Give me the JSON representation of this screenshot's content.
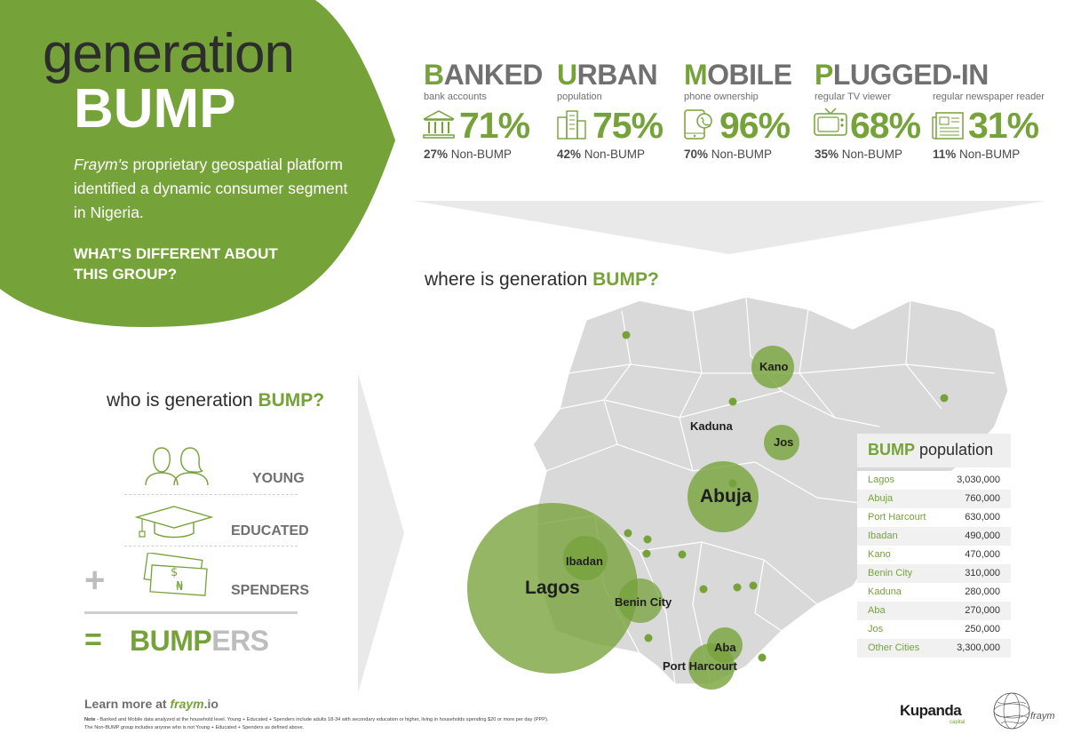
{
  "hero": {
    "title_line1": "generation",
    "title_line2": "BUMP",
    "brand": "Fraym's",
    "description": "proprietary geospatial platform identified a dynamic consumer segment in Nigeria.",
    "question_line1": "WHAT'S DIFFERENT ABOUT",
    "question_line2": "THIS GROUP?"
  },
  "stats": [
    {
      "cap": "B",
      "rest": "ANKED",
      "sub": "bank accounts",
      "value": "71%",
      "non_pct": "27%",
      "non_label": "Non-BUMP",
      "icon": "bank-icon"
    },
    {
      "cap": "U",
      "rest": "RBAN",
      "sub": "population",
      "value": "75%",
      "non_pct": "42%",
      "non_label": "Non-BUMP",
      "icon": "building-icon"
    },
    {
      "cap": "M",
      "rest": "OBILE",
      "sub": "phone ownership",
      "value": "96%",
      "non_pct": "70%",
      "non_label": "Non-BUMP",
      "icon": "phone-icon"
    },
    {
      "cap": "P",
      "rest": "LUGGED-IN",
      "sub": "regular TV viewer",
      "value": "68%",
      "non_pct": "35%",
      "non_label": "Non-BUMP",
      "icon": "tv-icon"
    },
    {
      "sub": "regular newspaper reader",
      "value": "31%",
      "non_pct": "11%",
      "non_label": "Non-BUMP",
      "icon": "newspaper-icon"
    }
  ],
  "where": {
    "prefix": "where is generation",
    "highlight": "BUMP?"
  },
  "who": {
    "prefix": "who is generation",
    "highlight": "BUMP?",
    "items": [
      "YOUNG",
      "EDUCATED",
      "SPENDERS"
    ],
    "plus": "+",
    "equals": "=",
    "result_a": "BUMP",
    "result_b": "ERS"
  },
  "map": {
    "cities": [
      "Kano",
      "Kaduna",
      "Jos",
      "Abuja",
      "Ibadan",
      "Lagos",
      "Benin City",
      "Aba",
      "Port Harcourt"
    ]
  },
  "population": {
    "title_a": "BUMP",
    "title_b": "population",
    "rows": [
      {
        "city": "Lagos",
        "value": "3,030,000"
      },
      {
        "city": "Abuja",
        "value": "760,000"
      },
      {
        "city": "Port Harcourt",
        "value": "630,000"
      },
      {
        "city": "Ibadan",
        "value": "490,000"
      },
      {
        "city": "Kano",
        "value": "470,000"
      },
      {
        "city": "Benin City",
        "value": "310,000"
      },
      {
        "city": "Kaduna",
        "value": "280,000"
      },
      {
        "city": "Aba",
        "value": "270,000"
      },
      {
        "city": "Jos",
        "value": "250,000"
      },
      {
        "city": "Other Cities",
        "value": "3,300,000"
      }
    ]
  },
  "footer": {
    "learn_prefix": "Learn more at",
    "learn_site": "fraym",
    "learn_tld": ".io",
    "note_label": "Note",
    "note_line1": " - Banked and Mobile data analyzed at the household level. Young + Educated + Spenders include adults 18-34 with secondary education or higher, living in households spending $20 or more per day (PPP).",
    "note_line2": "The Non-BUMP group includes anyone who is not Young + Educated + Spenders as defined above.",
    "kupanda": "Kupanda",
    "kupanda_sub": "capital",
    "fraym": "fraym"
  },
  "colors": {
    "accent": "#76a23a",
    "gray": "#6f6f6f",
    "map": "#d9d9d9"
  }
}
